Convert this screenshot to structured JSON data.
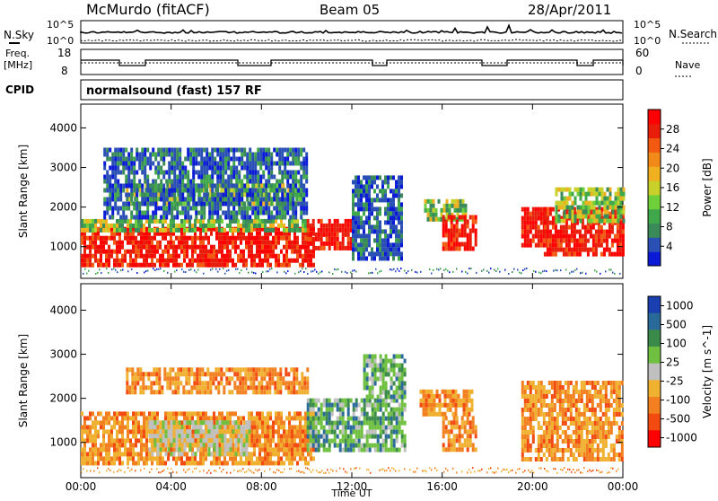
{
  "header": {
    "station": "McMurdo (fitACF)",
    "beam": "Beam 05",
    "date": "28/Apr/2011"
  },
  "strip_labels": {
    "nsky": "N.Sky",
    "nsearch": "N.Search",
    "freq": "Freq.",
    "freq_unit": "[MHz]",
    "nave": "Nave",
    "cpid": "CPID",
    "cpid_value": "normalsound (fast) 157 RF"
  },
  "strip_ticks": {
    "noise_left": [
      "10^5",
      "10^0"
    ],
    "noise_right": [
      "10^5",
      "10^0"
    ],
    "freq_left": [
      "18",
      "8"
    ],
    "nave_right": [
      "60",
      "0"
    ]
  },
  "chart_data": [
    {
      "type": "heatmap",
      "panel": "power",
      "xlabel": "Time UT",
      "ylabel": "Slant Range [km]",
      "xticks": [
        "00:00",
        "04:00",
        "08:00",
        "12:00",
        "16:00",
        "20:00",
        "00:00"
      ],
      "yticks": [
        1000,
        2000,
        3000,
        4000
      ],
      "ylim": [
        200,
        4600
      ],
      "colorbar": {
        "label": "Power [dB]",
        "ticks": [
          "4",
          "8",
          "12",
          "16",
          "20",
          "24",
          "28"
        ],
        "colors": [
          "#0a1ad6",
          "#2a4fb5",
          "#3a8a5a",
          "#3fa84a",
          "#6fcf3a",
          "#c8d02a",
          "#f0b020",
          "#f28a1a",
          "#f25a12",
          "#e81e0a",
          "#ff0000"
        ]
      },
      "regions": [
        {
          "t0": 0.0,
          "t1": 10.3,
          "r0": 500,
          "r1": 1500,
          "level": "high"
        },
        {
          "t0": 0.0,
          "t1": 10.0,
          "r0": 1400,
          "r1": 1700,
          "level": "mid"
        },
        {
          "t0": 2.0,
          "t1": 9.8,
          "r0": 2100,
          "r1": 2600,
          "level": "mid"
        },
        {
          "t0": 1.0,
          "t1": 10.0,
          "r0": 1700,
          "r1": 3500,
          "level": "low"
        },
        {
          "t0": 10.0,
          "t1": 12.0,
          "r0": 1000,
          "r1": 1700,
          "level": "high"
        },
        {
          "t0": 12.0,
          "t1": 14.2,
          "r0": 700,
          "r1": 2800,
          "level": "low"
        },
        {
          "t0": 15.2,
          "t1": 17.0,
          "r0": 1700,
          "r1": 2200,
          "level": "mid"
        },
        {
          "t0": 16.0,
          "t1": 17.5,
          "r0": 1000,
          "r1": 1800,
          "level": "high"
        },
        {
          "t0": 19.5,
          "t1": 20.6,
          "r0": 1000,
          "r1": 2000,
          "level": "high"
        },
        {
          "t0": 20.5,
          "t1": 24.0,
          "r0": 800,
          "r1": 2000,
          "level": "high"
        },
        {
          "t0": 21.0,
          "t1": 24.0,
          "r0": 1700,
          "r1": 2500,
          "level": "mid"
        }
      ]
    },
    {
      "type": "heatmap",
      "panel": "velocity",
      "xlabel": "Time UT",
      "ylabel": "Slant Range [km]",
      "xticks": [
        "00:00",
        "04:00",
        "08:00",
        "12:00",
        "16:00",
        "20:00",
        "00:00"
      ],
      "yticks": [
        1000,
        2000,
        3000,
        4000
      ],
      "ylim": [
        200,
        4600
      ],
      "colorbar": {
        "label": "Velocity [m s^-1]",
        "ticks": [
          "1000",
          "500",
          "100",
          "25",
          "-25",
          "-100",
          "-500",
          "-1000"
        ],
        "colors": [
          "#1a3fb0",
          "#2a6a9a",
          "#3a8a4a",
          "#6fc040",
          "#c0c0c0",
          "#f0b030",
          "#f28020",
          "#f24a10",
          "#ff0000"
        ]
      },
      "regions": [
        {
          "t0": 0.0,
          "t1": 10.3,
          "r0": 500,
          "r1": 1700,
          "level": "neg"
        },
        {
          "t0": 3.0,
          "t1": 7.5,
          "r0": 700,
          "r1": 1500,
          "level": "zero"
        },
        {
          "t0": 2.0,
          "t1": 10.0,
          "r0": 2100,
          "r1": 2700,
          "level": "neg"
        },
        {
          "t0": 10.0,
          "t1": 14.3,
          "r0": 800,
          "r1": 2000,
          "level": "pos"
        },
        {
          "t0": 12.5,
          "t1": 14.3,
          "r0": 2000,
          "r1": 3000,
          "level": "pos"
        },
        {
          "t0": 15.0,
          "t1": 17.3,
          "r0": 1600,
          "r1": 2200,
          "level": "neg"
        },
        {
          "t0": 16.0,
          "t1": 17.5,
          "r0": 800,
          "r1": 1600,
          "level": "neg"
        },
        {
          "t0": 19.5,
          "t1": 24.0,
          "r0": 600,
          "r1": 2400,
          "level": "neg"
        }
      ]
    }
  ]
}
